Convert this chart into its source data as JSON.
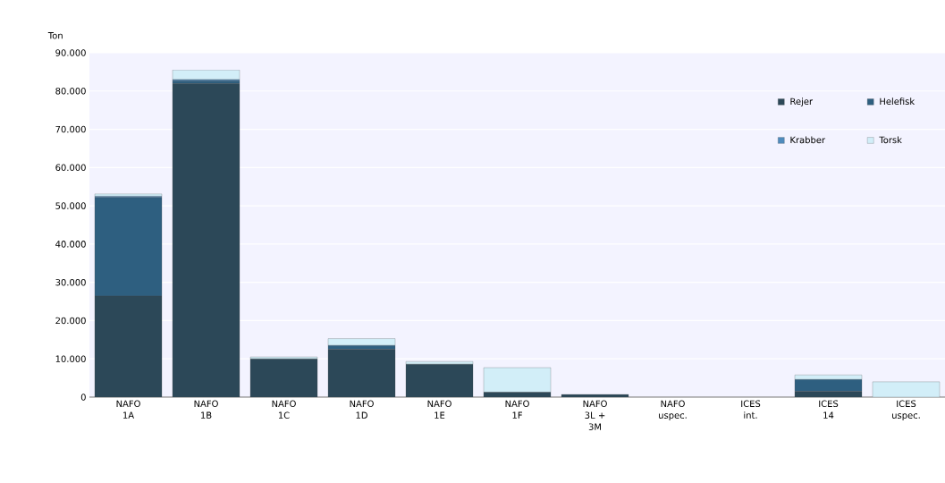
{
  "chart_data": {
    "type": "bar",
    "stacked": true,
    "ylabel": "Ton",
    "categories": [
      "NAFO 1A",
      "NAFO 1B",
      "NAFO 1C",
      "NAFO 1D",
      "NAFO 1E",
      "NAFO 1F",
      "NAFO 3L + 3M",
      "NAFO uspec.",
      "ICES int.",
      "ICES 14",
      "ICES uspec."
    ],
    "series": [
      {
        "name": "Rejer",
        "color": "#2c4858",
        "values": [
          26400,
          82000,
          10000,
          12500,
          8600,
          1300,
          700,
          0,
          0,
          1500,
          0
        ]
      },
      {
        "name": "Helefisk",
        "color": "#2e5f80",
        "values": [
          25800,
          700,
          0,
          1000,
          0,
          0,
          0,
          0,
          0,
          3100,
          0
        ]
      },
      {
        "name": "Krabber",
        "color": "#4f8bbd",
        "values": [
          300,
          300,
          0,
          0,
          0,
          0,
          0,
          0,
          0,
          0,
          0
        ]
      },
      {
        "name": "Torsk",
        "color": "#d2eef8",
        "values": [
          600,
          2500,
          500,
          1800,
          700,
          6400,
          0,
          0,
          0,
          1200,
          4000
        ]
      }
    ],
    "ylim": [
      0,
      90000
    ],
    "yticks": [
      {
        "value": 0,
        "label": "0"
      },
      {
        "value": 10000,
        "label": "10.000"
      },
      {
        "value": 20000,
        "label": "20.000"
      },
      {
        "value": 30000,
        "label": "30.000"
      },
      {
        "value": 40000,
        "label": "40.000"
      },
      {
        "value": 50000,
        "label": "50.000"
      },
      {
        "value": 60000,
        "label": "60.000"
      },
      {
        "value": 70000,
        "label": "70.000"
      },
      {
        "value": 80000,
        "label": "80.000"
      },
      {
        "value": 90000,
        "label": "90.000"
      }
    ],
    "grid": "y",
    "legend": "top right"
  }
}
